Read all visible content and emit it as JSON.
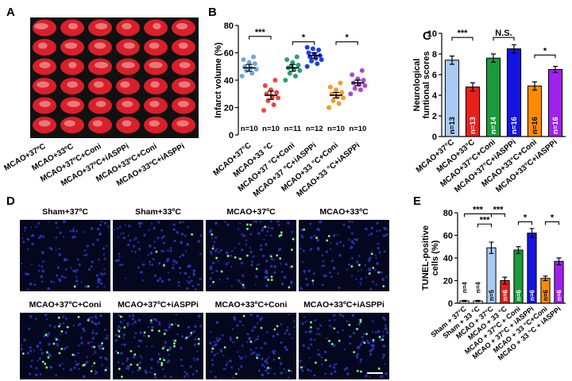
{
  "panel_labels": [
    "A",
    "B",
    "C",
    "D",
    "E"
  ],
  "image_panels": {
    "brain_slices": {
      "labels": [
        "MCAO+37ºC",
        "MCAO+33ºC",
        "MCAO+37ºC+Coni",
        "MCAO+37ºC+iASPPi",
        "MCAO+33ºC+Coni",
        "MCAO+33ºC+iASPPi"
      ]
    },
    "tunel_images": {
      "labels": [
        "Sham+37ºC",
        "Sham+33ºC",
        "MCAO+37ºC",
        "MCAO+33ºC",
        "MCAO+37ºC+Coni",
        "MCAO+37ºC+iASPPi",
        "MCAO+33ºC+Coni",
        "MCAO+33ºC+iASPPi"
      ]
    }
  },
  "chart_data": [
    {
      "type": "scatter",
      "y_label": [
        "Infarct volume (%)"
      ],
      "categories": [
        "MCAO+37°C",
        "MCAO+33 °C",
        "MCAO+37 °C+Coni",
        "MCAO+37 °C+iASPPi",
        "MCAO+33 °C+Coni",
        "MCAO+33 °C+iASPPi"
      ],
      "values": [
        49,
        29,
        49,
        58,
        29,
        38
      ],
      "errors": [
        2.5,
        3,
        2.5,
        2,
        2,
        2
      ],
      "points": [
        [
          43,
          45,
          47,
          48,
          49,
          50,
          52,
          53,
          55,
          57
        ],
        [
          18,
          22,
          25,
          27,
          28,
          30,
          31,
          33,
          36,
          40
        ],
        [
          40,
          43,
          45,
          47,
          48,
          49,
          51,
          53,
          55,
          57,
          50
        ],
        [
          50,
          52,
          54,
          55,
          56,
          57,
          58,
          59,
          60,
          62,
          63,
          64
        ],
        [
          20,
          23,
          25,
          27,
          28,
          30,
          31,
          33,
          35,
          38
        ],
        [
          30,
          33,
          34,
          36,
          37,
          38,
          40,
          41,
          44,
          47
        ]
      ],
      "colors": [
        "#6fa8dc",
        "#e8483c",
        "#2e9e6e",
        "#1f3fe0",
        "#f59a2a",
        "#a64bd6"
      ],
      "n_labels": [
        "n=10",
        "n=10",
        "n=11",
        "n=12",
        "n=10",
        "n=10"
      ],
      "annotations": [
        "***",
        "*",
        "*"
      ],
      "ylim": [
        0,
        80
      ],
      "yticks": [
        0,
        20,
        40,
        60,
        80
      ]
    },
    {
      "type": "bar",
      "y_label": [
        "Neurological",
        "funtional scores"
      ],
      "categories": [
        "MCAO+37°C",
        "MCAO+33°C",
        "MCAO+37°C+Coni",
        "MCAO+37°C+iASPPi",
        "MCAO+33°C+Coni",
        "MCAO+33°C+iASPPi"
      ],
      "values": [
        7.4,
        4.8,
        7.6,
        8.5,
        4.9,
        6.5
      ],
      "errors": [
        0.4,
        0.4,
        0.4,
        0.4,
        0.4,
        0.3
      ],
      "colors": [
        "#a9cbf2",
        "#e8201c",
        "#1a9a3a",
        "#1414e0",
        "#ff8c00",
        "#a020f0"
      ],
      "n_labels": [
        "n=13",
        "n=13",
        "n=14",
        "n=16",
        "n=16",
        "n=16"
      ],
      "annotations": [
        "***",
        "N.S.",
        "*"
      ],
      "ylim": [
        0,
        10
      ],
      "yticks": [
        0,
        2,
        4,
        6,
        8,
        10
      ]
    },
    {
      "type": "bar",
      "y_label": [
        "TUNEL-positive",
        "cells (%)"
      ],
      "categories": [
        "Sham + 37°C",
        "Sham + 33 °C",
        "MCAO + 37°C",
        "MCAO + 33 °C",
        "MCAO + 37°C + Coni",
        "MCAO + 37°C + iASPPi",
        "MCAO + 33 °C+Coni",
        "MCAO + 33 °C + iASPPi"
      ],
      "values": [
        2,
        2,
        49,
        20,
        47,
        62,
        22,
        37
      ],
      "errors": [
        0.5,
        0.5,
        5,
        3,
        3,
        4,
        2,
        3
      ],
      "colors": [
        "#ffffff",
        "#ffffff",
        "#a9cbf2",
        "#e8201c",
        "#1a9a3a",
        "#1414e0",
        "#ff8c00",
        "#a020f0"
      ],
      "n_labels": [
        "n=4",
        "n=4",
        "n=5",
        "n=6",
        "n=6",
        "n=6",
        "n=6",
        "n=6"
      ],
      "annotations": [
        "***",
        "***",
        "***",
        "*",
        "*"
      ],
      "ylim": [
        0,
        80
      ],
      "yticks": [
        0,
        20,
        40,
        60,
        80
      ]
    }
  ]
}
